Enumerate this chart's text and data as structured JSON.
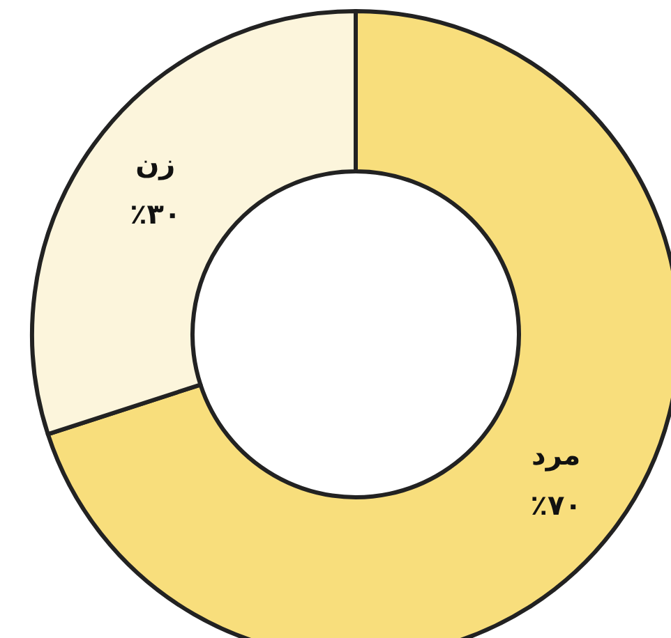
{
  "chart_data": {
    "type": "donut",
    "categories": [
      "مرد",
      "زن"
    ],
    "values": [
      70,
      30
    ],
    "value_labels": [
      "٪۷۰",
      "٪۳۰"
    ],
    "colors": [
      "#f8de7c",
      "#fcf5dc"
    ],
    "legend": false
  }
}
